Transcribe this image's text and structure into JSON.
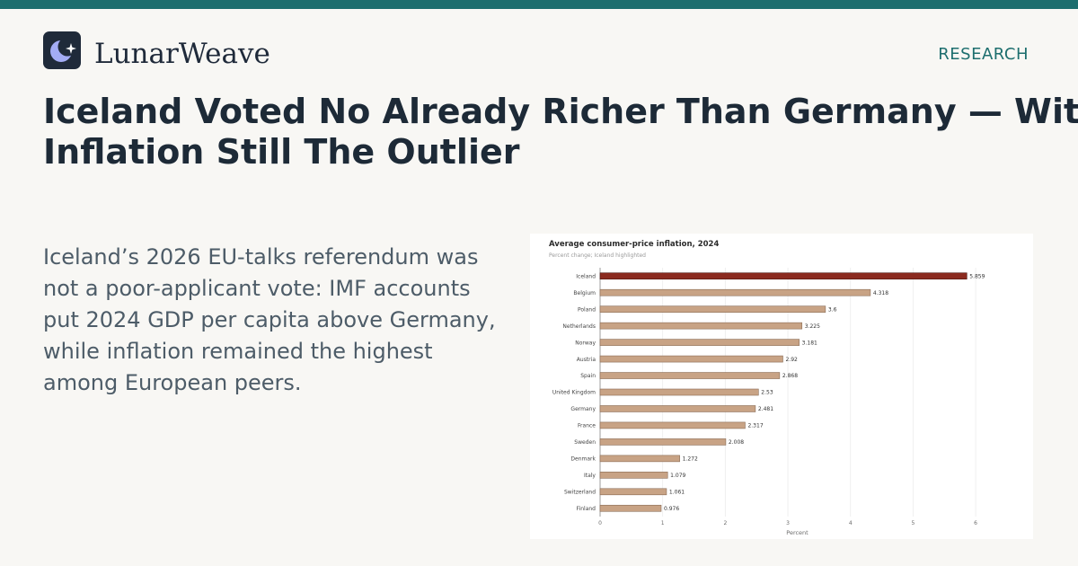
{
  "brand": {
    "name": "LunarWeave",
    "logo_icon": "crescent-moon-star-icon"
  },
  "section_label": "RESEARCH",
  "headline": "Iceland Voted No Already Richer Than Germany — With Inflation Still The Outlier",
  "dek": "Iceland’s 2026 EU-talks referendum was not a poor-applicant vote: IMF accounts put 2024 GDP per capita above Germany, while inflation remained the highest among European peers.",
  "colors": {
    "accent": "#1d6e6e",
    "highlight_bar": "#8b2a1f",
    "bar": "#c8a385"
  },
  "chart_data": {
    "type": "bar",
    "orientation": "horizontal",
    "title": "Average consumer-price inflation, 2024",
    "subtitle": "Percent change; Iceland highlighted",
    "xlabel": "Percent",
    "ylabel": "",
    "xlim": [
      0,
      6.3
    ],
    "xticks": [
      0,
      1,
      2,
      3,
      4,
      5,
      6
    ],
    "grid": true,
    "highlight": "Iceland",
    "categories": [
      "Iceland",
      "Belgium",
      "Poland",
      "Netherlands",
      "Norway",
      "Austria",
      "Spain",
      "United Kingdom",
      "Germany",
      "France",
      "Sweden",
      "Denmark",
      "Italy",
      "Switzerland",
      "Finland"
    ],
    "values": [
      5.859,
      4.318,
      3.6,
      3.225,
      3.181,
      2.92,
      2.868,
      2.53,
      2.481,
      2.317,
      2.008,
      1.272,
      1.079,
      1.061,
      0.976
    ],
    "value_labels": [
      "5.859",
      "4.318",
      "3.6",
      "3.225",
      "3.181",
      "2.92",
      "2.868",
      "2.53",
      "2.481",
      "2.317",
      "2.008",
      "1.272",
      "1.079",
      "1.061",
      "0.976"
    ]
  }
}
